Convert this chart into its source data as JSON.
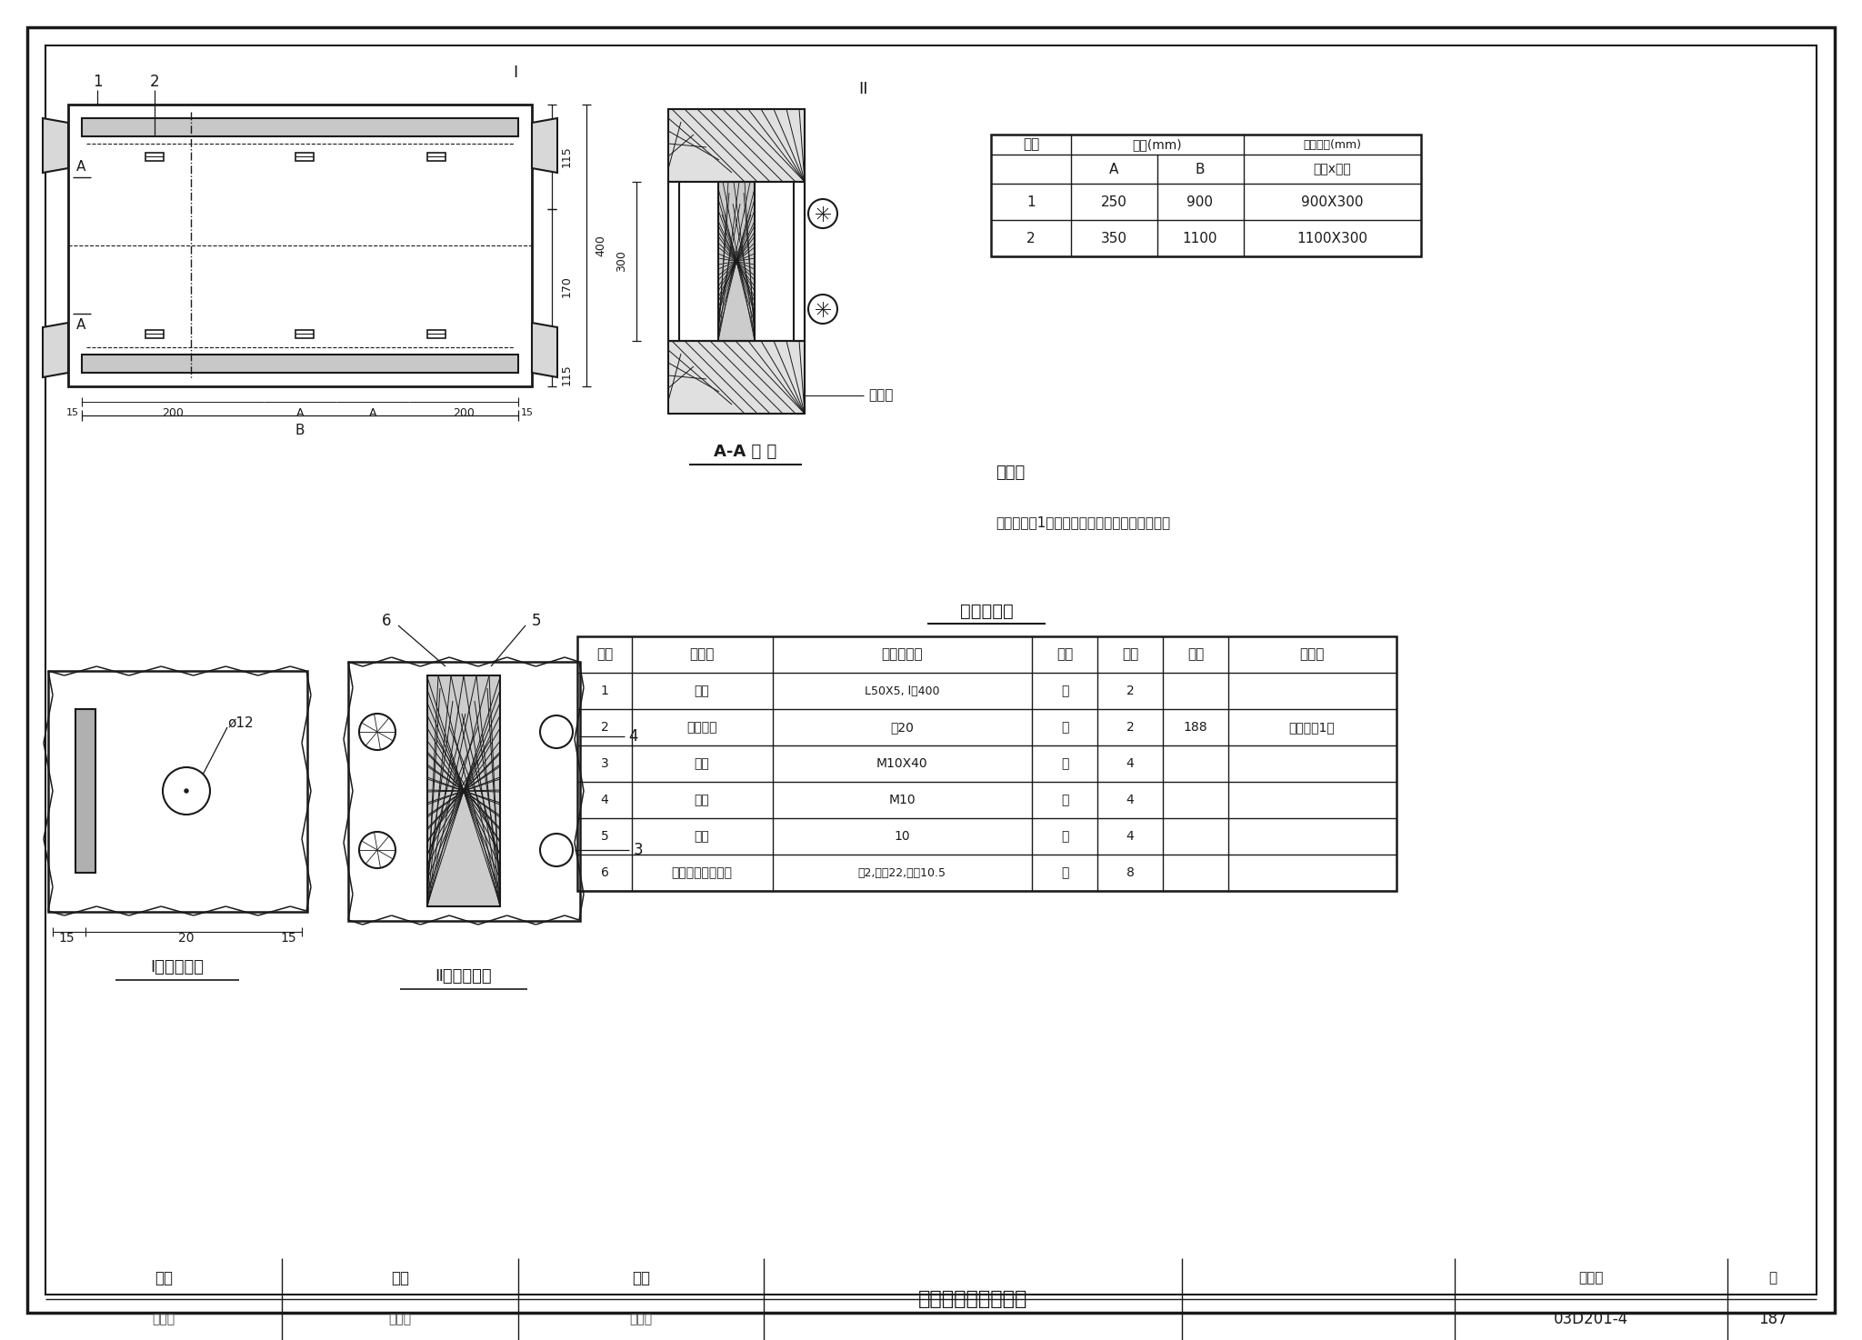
{
  "bg": "white",
  "lc": "#1a1a1a",
  "title_bottom": "低压母线穿墙板安装",
  "atlas_no": "03D201-4",
  "page_no": "187",
  "note_line1": "说明：",
  "note_line2": "角钢（零件1）与洞口预埋件的固定采用焊接。",
  "detail_title": "明　细　表",
  "type_table_rows": [
    [
      "1",
      "250",
      "900",
      "900X300"
    ],
    [
      "2",
      "350",
      "1100",
      "1100X300"
    ]
  ],
  "detail_headers": [
    "编号",
    "名　称",
    "型号及规格",
    "单位",
    "数量",
    "页次",
    "备　注"
  ],
  "detail_rows": [
    [
      "1",
      "角钢",
      "L50X5, l＝400",
      "根",
      "2",
      "",
      ""
    ],
    [
      "2",
      "绝缘夹板",
      "厚20",
      "块",
      "2",
      "188",
      "上、下各1块"
    ],
    [
      "3",
      "螺栓",
      "M10X40",
      "个",
      "4",
      "",
      ""
    ],
    [
      "4",
      "螺母",
      "M10",
      "个",
      "4",
      "",
      ""
    ],
    [
      "5",
      "垫圈",
      "10",
      "个",
      "4",
      "",
      ""
    ],
    [
      "6",
      "橡胶或石棉纸垫圈",
      "厚2,外径22,内径10.5",
      "个",
      "8",
      "",
      ""
    ]
  ],
  "label_I": "Ⅰ局部放大图",
  "label_II": "Ⅱ局部放大图",
  "label_AA": "A-A 剖 面",
  "label_yumajian": "预埋件",
  "bottom_labels": [
    "审核",
    "校对",
    "设计"
  ],
  "bottom_sigs": [
    "多描写",
    "张时良",
    "沈茂锄"
  ]
}
